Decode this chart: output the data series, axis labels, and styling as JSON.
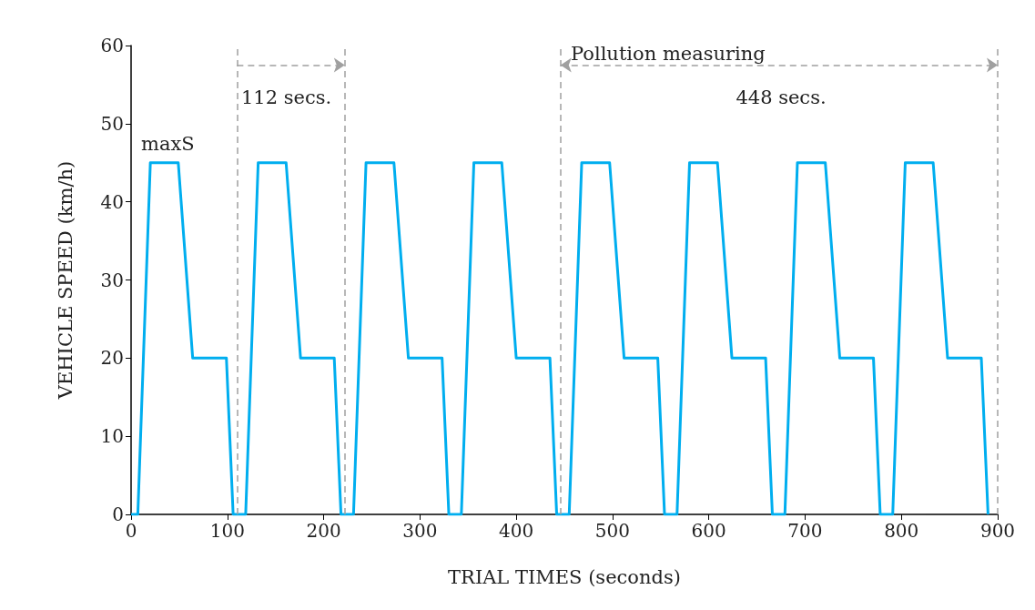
{
  "chart_data": {
    "type": "line",
    "xlabel": "TRIAL TIMES (seconds)",
    "ylabel": "VEHICLE SPEED (km/h)",
    "x": [
      0,
      7,
      20,
      49,
      64,
      99,
      106,
      119,
      132,
      161,
      176,
      211,
      218,
      231,
      244,
      273,
      288,
      323,
      330,
      343,
      356,
      385,
      400,
      435,
      442,
      455,
      468,
      497,
      512,
      547,
      554,
      567,
      580,
      609,
      624,
      659,
      666,
      679,
      692,
      721,
      736,
      771,
      778,
      791,
      804,
      833,
      848,
      883,
      890
    ],
    "series": [
      {
        "color": "#00aeef",
        "values": [
          0,
          0,
          45,
          45,
          20,
          20,
          0,
          0,
          45,
          45,
          20,
          20,
          0,
          0,
          45,
          45,
          20,
          20,
          0,
          0,
          45,
          45,
          20,
          20,
          0,
          0,
          45,
          45,
          20,
          20,
          0,
          0,
          45,
          45,
          20,
          20,
          0,
          0,
          45,
          45,
          20,
          20,
          0,
          0,
          45,
          45,
          20,
          20,
          0
        ]
      }
    ],
    "xlim": [
      0,
      900
    ],
    "xticks": [
      0,
      100,
      200,
      300,
      400,
      500,
      600,
      700,
      800,
      900
    ],
    "ylim": [
      0,
      60
    ],
    "yticks": [
      0,
      10,
      20,
      30,
      40,
      50,
      60
    ],
    "grid": false,
    "marker": "none",
    "line_style": "solid",
    "ref_lines": [
      {
        "axis": "x",
        "value": 110,
        "label": null,
        "color": "#a0a0a0",
        "line_style": "dashed"
      },
      {
        "axis": "x",
        "value": 222,
        "label": null,
        "color": "#a0a0a0",
        "line_style": "dashed"
      },
      {
        "axis": "x",
        "value": 446,
        "label": null,
        "color": "#a0a0a0",
        "line_style": "dashed"
      },
      {
        "axis": "x",
        "value": 900,
        "label": null,
        "color": "#a0a0a0",
        "line_style": "dashed"
      }
    ],
    "annotations": [
      "maxS",
      "112 secs.",
      "Pollution measuring",
      "448 secs."
    ]
  }
}
